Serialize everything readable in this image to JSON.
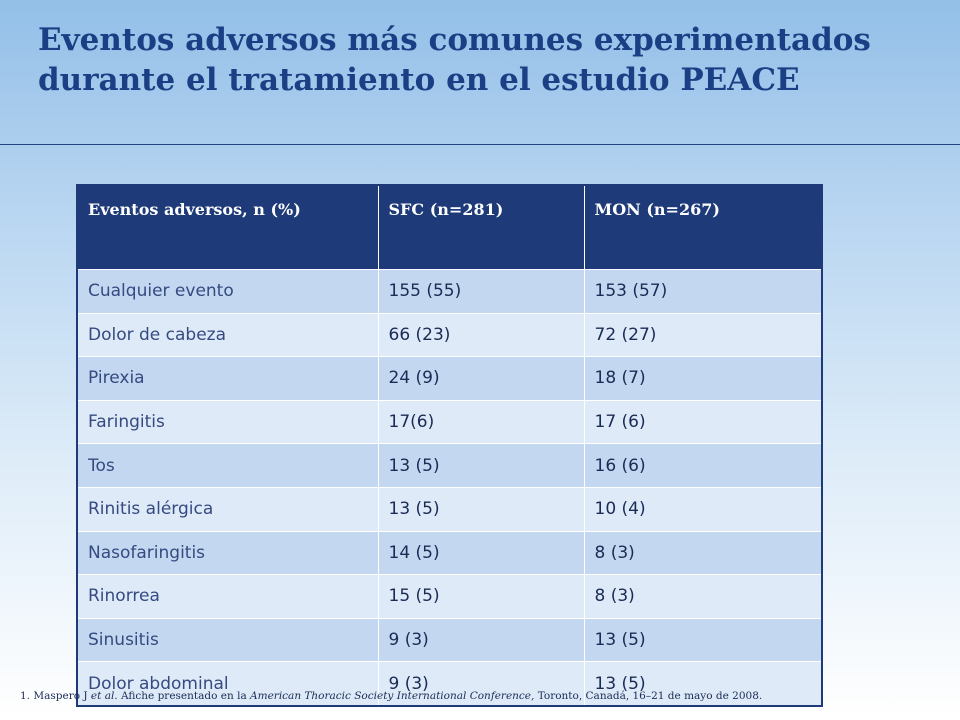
{
  "slide": {
    "title": "Eventos adversos más comunes experimentados durante el tratamiento en el estudio PEACE"
  },
  "table": {
    "headers": [
      "Eventos adversos, n (%)",
      "SFC (n=281)",
      "MON (n=267)"
    ],
    "rows": [
      [
        "Cualquier evento",
        "155 (55)",
        "153 (57)"
      ],
      [
        "Dolor de cabeza",
        "66 (23)",
        "72 (27)"
      ],
      [
        "Pirexia",
        "24 (9)",
        "18 (7)"
      ],
      [
        "Faringitis",
        "17(6)",
        "17 (6)"
      ],
      [
        "Tos",
        "13 (5)",
        "16 (6)"
      ],
      [
        "Rinitis alérgica",
        "13 (5)",
        "10 (4)"
      ],
      [
        "Nasofaringitis",
        "14 (5)",
        "8 (3)"
      ],
      [
        "Rinorrea",
        "15 (5)",
        "8 (3)"
      ],
      [
        "Sinusitis",
        "9 (3)",
        "13 (5)"
      ],
      [
        "Dolor abdominal",
        "9 (3)",
        "13 (5)"
      ]
    ]
  },
  "footnote": {
    "part1": "1. Maspero J ",
    "etal": "et al.",
    "part2": " Afiche presentado en la ",
    "venue": "American Thoracic Society International Conference,",
    "part3": " Toronto, Canadá, 16–21 de mayo de 2008."
  },
  "colors": {
    "title": "#1b3f84",
    "header_bg": "#1e3a78",
    "row_odd": "#c3d8f0",
    "row_even": "#deeaf7"
  }
}
